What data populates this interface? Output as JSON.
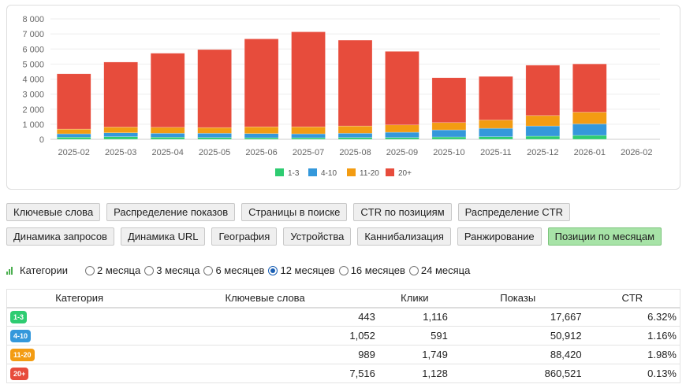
{
  "chart_data": {
    "type": "bar",
    "stacked": true,
    "categories": [
      "2025-02",
      "2025-03",
      "2025-04",
      "2025-05",
      "2025-06",
      "2025-07",
      "2025-08",
      "2025-09",
      "2025-10",
      "2025-11",
      "2025-12",
      "2026-01",
      "2026-02"
    ],
    "series": [
      {
        "name": "1-3",
        "color": "#2ecc71",
        "values": [
          140,
          173,
          140,
          120,
          104,
          104,
          120,
          120,
          156,
          173,
          208,
          260,
          0
        ]
      },
      {
        "name": "4-10",
        "color": "#3498db",
        "values": [
          225,
          260,
          260,
          280,
          277,
          260,
          280,
          348,
          468,
          555,
          676,
          763,
          0
        ]
      },
      {
        "name": "11-20",
        "color": "#f39c12",
        "values": [
          310,
          382,
          397,
          380,
          451,
          468,
          484,
          485,
          485,
          554,
          693,
          779,
          0
        ]
      },
      {
        "name": "20+",
        "color": "#e74c3c",
        "values": [
          3675,
          4315,
          4923,
          5182,
          5840,
          6308,
          5702,
          4887,
          2981,
          2895,
          3345,
          3207,
          0
        ]
      }
    ],
    "ylim": [
      0,
      8000
    ],
    "yticks": [
      0,
      1000,
      2000,
      3000,
      4000,
      5000,
      6000,
      7000,
      8000
    ],
    "ytick_labels": [
      "0",
      "1 000",
      "2 000",
      "3 000",
      "4 000",
      "5 000",
      "6 000",
      "7 000",
      "8 000"
    ],
    "title": "",
    "xlabel": "",
    "ylabel": "",
    "grid": true,
    "legend": "bottom-center"
  },
  "buttons": [
    {
      "label": "Ключевые слова",
      "active": false
    },
    {
      "label": "Распределение показов",
      "active": false
    },
    {
      "label": "Страницы в поиске",
      "active": false
    },
    {
      "label": "CTR по позициям",
      "active": false
    },
    {
      "label": "Распределение CTR",
      "active": false
    },
    {
      "label": "Динамика запросов",
      "active": false
    },
    {
      "label": "Динамика URL",
      "active": false
    },
    {
      "label": "География",
      "active": false
    },
    {
      "label": "Устройства",
      "active": false
    },
    {
      "label": "Каннибализация",
      "active": false
    },
    {
      "label": "Ранжирование",
      "active": false
    },
    {
      "label": "Позиции по месяцам",
      "active": true
    }
  ],
  "filter": {
    "label": "Категории",
    "options": [
      {
        "label": "2 месяца",
        "checked": false
      },
      {
        "label": "3 месяца",
        "checked": false
      },
      {
        "label": "6 месяцев",
        "checked": false
      },
      {
        "label": "12 месяцев",
        "checked": true
      },
      {
        "label": "16 месяцев",
        "checked": false
      },
      {
        "label": "24 месяца",
        "checked": false
      }
    ]
  },
  "table": {
    "headers": [
      "Категория",
      "Ключевые слова",
      "Клики",
      "Показы",
      "CTR"
    ],
    "rows": [
      {
        "badge": "1-3",
        "color": "#2ecc71",
        "keywords": "443",
        "clicks": "1,116",
        "impressions": "17,667",
        "ctr": "6.32%"
      },
      {
        "badge": "4-10",
        "color": "#3498db",
        "keywords": "1,052",
        "clicks": "591",
        "impressions": "50,912",
        "ctr": "1.16%"
      },
      {
        "badge": "11-20",
        "color": "#f39c12",
        "keywords": "989",
        "clicks": "1,749",
        "impressions": "88,420",
        "ctr": "1.98%"
      },
      {
        "badge": "20+",
        "color": "#e74c3c",
        "keywords": "7,516",
        "clicks": "1,128",
        "impressions": "860,521",
        "ctr": "0.13%"
      }
    ]
  }
}
